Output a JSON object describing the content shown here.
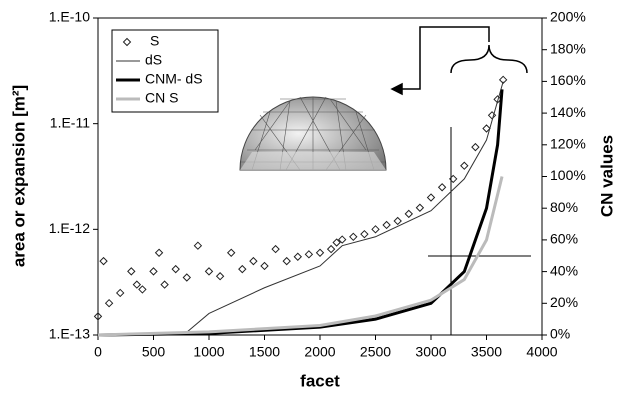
{
  "chart_data": {
    "type": "scatter-line",
    "x_label": "facet",
    "y_label": "area or expansion [m²]",
    "y2_label": "CN values",
    "xlim": [
      0,
      4000
    ],
    "xticks": [
      0,
      500,
      1000,
      1500,
      2000,
      2500,
      3000,
      3500,
      4000
    ],
    "ylim": [
      1e-13,
      1e-10
    ],
    "ylog": true,
    "yticks": [
      {
        "value": 1e-13,
        "label": "1.E-13"
      },
      {
        "value": 1e-12,
        "label": "1.E-12"
      },
      {
        "value": 1e-11,
        "label": "1.E-11"
      },
      {
        "value": 1e-10,
        "label": "1.E-10"
      }
    ],
    "y2lim": [
      0,
      200
    ],
    "y2ticks": [
      {
        "value": 0,
        "label": "0%"
      },
      {
        "value": 20,
        "label": "20%"
      },
      {
        "value": 40,
        "label": "40%"
      },
      {
        "value": 60,
        "label": "60%"
      },
      {
        "value": 80,
        "label": "80%"
      },
      {
        "value": 100,
        "label": "100%"
      },
      {
        "value": 120,
        "label": "120%"
      },
      {
        "value": 140,
        "label": "140%"
      },
      {
        "value": 160,
        "label": "160%"
      },
      {
        "value": 180,
        "label": "180%"
      },
      {
        "value": 200,
        "label": "200%"
      }
    ],
    "legend": "top-left",
    "series": [
      {
        "name": "S",
        "style": "markers",
        "color": "#222222",
        "x": [
          0,
          50,
          100,
          200,
          300,
          350,
          400,
          500,
          550,
          600,
          700,
          800,
          900,
          1000,
          1100,
          1200,
          1300,
          1400,
          1500,
          1600,
          1700,
          1800,
          1900,
          2000,
          2100,
          2150,
          2200,
          2300,
          2400,
          2500,
          2600,
          2700,
          2800,
          2900,
          3000,
          3100,
          3200,
          3300,
          3400,
          3500,
          3550,
          3600,
          3650
        ],
        "values": [
          1.5e-13,
          5e-13,
          2e-13,
          2.5e-13,
          4e-13,
          3e-13,
          2.7e-13,
          4e-13,
          6e-13,
          3e-13,
          4.2e-13,
          3.5e-13,
          7e-13,
          4e-13,
          3.6e-13,
          6e-13,
          4.2e-13,
          5e-13,
          4.5e-13,
          6.5e-13,
          5e-13,
          5.5e-13,
          5.8e-13,
          6e-13,
          6.5e-13,
          7.5e-13,
          8e-13,
          8.5e-13,
          9e-13,
          1e-12,
          1.1e-12,
          1.2e-12,
          1.4e-12,
          1.6e-12,
          2e-12,
          2.5e-12,
          3e-12,
          4e-12,
          6e-12,
          9e-12,
          1.2e-11,
          1.7e-11,
          2.6e-11
        ]
      },
      {
        "name": "dS",
        "style": "line",
        "width": 1,
        "color": "#333333",
        "x": [
          770,
          1000,
          1500,
          2000,
          2200,
          2500,
          3000,
          3300,
          3500,
          3650
        ],
        "values": [
          1e-13,
          1.6e-13,
          2.8e-13,
          4.5e-13,
          7e-13,
          8.5e-13,
          1.5e-12,
          3e-12,
          7e-12,
          2.5e-11
        ]
      },
      {
        "name": "CNM- dS",
        "style": "line",
        "width": 3,
        "color": "#000000",
        "axis": "y2",
        "x": [
          0,
          1000,
          2000,
          2500,
          3000,
          3300,
          3500,
          3600,
          3640
        ],
        "values": [
          0,
          1,
          5,
          10,
          20,
          40,
          80,
          120,
          155
        ]
      },
      {
        "name": "CN S",
        "style": "line",
        "width": 3,
        "color": "#bbbbbb",
        "axis": "y2",
        "x": [
          0,
          1000,
          2000,
          2500,
          3000,
          3300,
          3500,
          3640
        ],
        "values": [
          0,
          2,
          6,
          12,
          22,
          35,
          60,
          100
        ]
      }
    ]
  }
}
